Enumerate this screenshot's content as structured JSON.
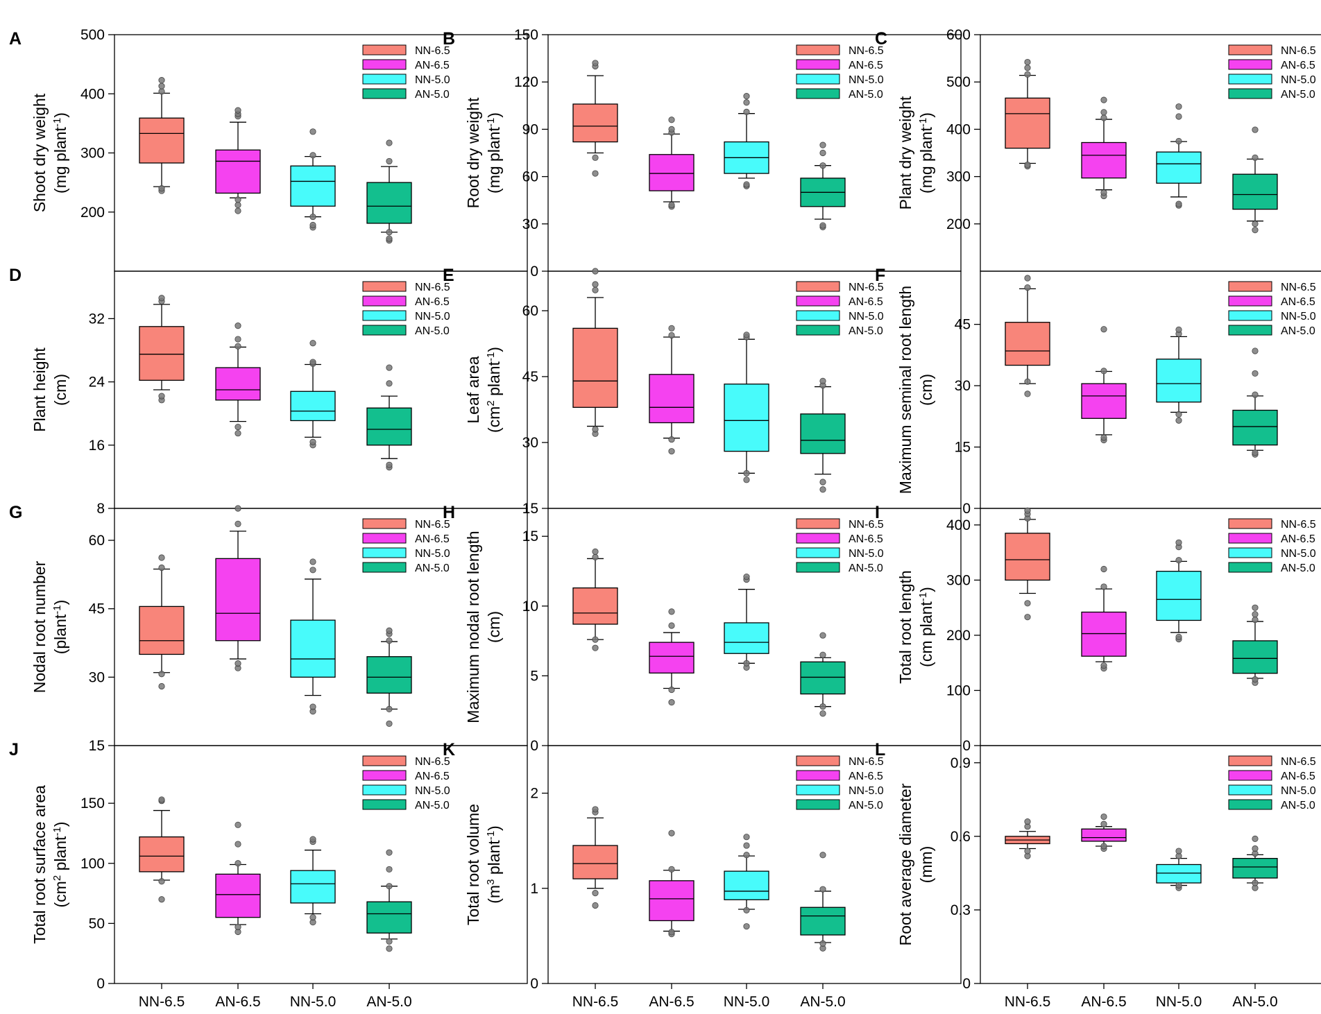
{
  "colors": {
    "NN-6.5": "#f8857a",
    "AN-6.5": "#f542f0",
    "NN-5.0": "#48fbfb",
    "AN-5.0": "#13bf8e"
  },
  "chart_data": [
    {
      "type": "box",
      "letter": "A",
      "ylabel": [
        "Shoot dry weight",
        "(mg plant",
        "-1",
        ")"
      ],
      "ylim": [
        100,
        500
      ],
      "ticks": [
        200,
        300,
        400,
        500
      ],
      "categories": [
        "NN-6.5",
        "AN-6.5",
        "NN-5.0",
        "AN-5.0"
      ],
      "series": [
        {
          "name": "NN-6.5",
          "min": 243,
          "q1": 283,
          "median": 333,
          "q3": 359,
          "max": 401,
          "outliers": [
            236,
            240,
            404,
            413,
            423
          ]
        },
        {
          "name": "AN-6.5",
          "min": 224,
          "q1": 232,
          "median": 286,
          "q3": 305,
          "max": 352,
          "outliers": [
            202,
            212,
            221,
            362,
            366,
            372
          ]
        },
        {
          "name": "NN-5.0",
          "min": 192,
          "q1": 210,
          "median": 252,
          "q3": 278,
          "max": 294,
          "outliers": [
            174,
            178,
            192,
            296,
            336
          ]
        },
        {
          "name": "AN-5.0",
          "min": 166,
          "q1": 181,
          "median": 210,
          "q3": 250,
          "max": 277,
          "outliers": [
            152,
            155,
            166,
            286,
            317
          ]
        }
      ]
    },
    {
      "type": "box",
      "letter": "B",
      "ylabel": [
        "Root dry weight",
        "(mg plant",
        "-1",
        ")"
      ],
      "ylim": [
        0,
        150
      ],
      "ticks": [
        0,
        30,
        60,
        90,
        120,
        150
      ],
      "categories": [
        "NN-6.5",
        "AN-6.5",
        "NN-5.0",
        "AN-5.0"
      ],
      "series": [
        {
          "name": "NN-6.5",
          "min": 75,
          "q1": 82,
          "median": 92,
          "q3": 106,
          "max": 124,
          "outliers": [
            62,
            72,
            130,
            132
          ]
        },
        {
          "name": "AN-6.5",
          "min": 44,
          "q1": 51,
          "median": 62,
          "q3": 74,
          "max": 87,
          "outliers": [
            41,
            42,
            88,
            90,
            96
          ]
        },
        {
          "name": "NN-5.0",
          "min": 59,
          "q1": 62,
          "median": 72,
          "q3": 82,
          "max": 100,
          "outliers": [
            54,
            55,
            101,
            107,
            111
          ]
        },
        {
          "name": "AN-5.0",
          "min": 33,
          "q1": 41,
          "median": 50,
          "q3": 59,
          "max": 67,
          "outliers": [
            28,
            29,
            67,
            75,
            80
          ]
        }
      ]
    },
    {
      "type": "box",
      "letter": "C",
      "ylabel": [
        "Plant dry weight",
        "(mg plant",
        "-1",
        ")"
      ],
      "ylim": [
        100,
        600
      ],
      "ticks": [
        200,
        300,
        400,
        500,
        600
      ],
      "categories": [
        "NN-6.5",
        "AN-6.5",
        "NN-5.0",
        "AN-5.0"
      ],
      "series": [
        {
          "name": "NN-6.5",
          "min": 328,
          "q1": 360,
          "median": 433,
          "q3": 466,
          "max": 514,
          "outliers": [
            322,
            325,
            516,
            530,
            542
          ]
        },
        {
          "name": "AN-6.5",
          "min": 272,
          "q1": 297,
          "median": 345,
          "q3": 372,
          "max": 421,
          "outliers": [
            259,
            266,
            424,
            436,
            462
          ]
        },
        {
          "name": "NN-5.0",
          "min": 257,
          "q1": 286,
          "median": 327,
          "q3": 352,
          "max": 374,
          "outliers": [
            239,
            242,
            375,
            427,
            448
          ]
        },
        {
          "name": "AN-5.0",
          "min": 206,
          "q1": 231,
          "median": 262,
          "q3": 305,
          "max": 337,
          "outliers": [
            187,
            200,
            340,
            399
          ]
        }
      ]
    },
    {
      "type": "box",
      "letter": "D",
      "ylabel": [
        "Plant height",
        "(cm)"
      ],
      "ylim": [
        8,
        38
      ],
      "ticks": [
        8,
        16,
        24,
        32
      ],
      "categories": [
        "NN-6.5",
        "AN-6.5",
        "NN-5.0",
        "AN-5.0"
      ],
      "series": [
        {
          "name": "NN-6.5",
          "min": 23,
          "q1": 24.2,
          "median": 27.5,
          "q3": 31,
          "max": 33.8,
          "outliers": [
            21.7,
            22.2,
            34.2,
            34.6
          ]
        },
        {
          "name": "AN-6.5",
          "min": 19,
          "q1": 21.7,
          "median": 23,
          "q3": 25.8,
          "max": 28.4,
          "outliers": [
            17.5,
            18.3,
            28.5,
            29.4,
            31.1
          ]
        },
        {
          "name": "NN-5.0",
          "min": 17,
          "q1": 19.1,
          "median": 20.3,
          "q3": 22.8,
          "max": 26.2,
          "outliers": [
            16,
            16.4,
            26.3,
            26.5,
            28.9
          ]
        },
        {
          "name": "AN-5.0",
          "min": 14.3,
          "q1": 16,
          "median": 18,
          "q3": 20.7,
          "max": 22.2,
          "outliers": [
            13.2,
            13.5,
            23.8,
            25.8
          ]
        }
      ]
    },
    {
      "type": "box",
      "letter": "E",
      "ylabel": [
        "Leaf area",
        "(cm",
        "2",
        " plant",
        "-1",
        ")"
      ],
      "ylim": [
        15,
        69
      ],
      "ticks": [
        15,
        30,
        45,
        60
      ],
      "categories": [
        "NN-6.5",
        "AN-6.5",
        "NN-5.0",
        "AN-5.0"
      ],
      "series": [
        {
          "name": "NN-6.5",
          "min": 33.7,
          "q1": 38,
          "median": 44,
          "q3": 56,
          "max": 63,
          "outliers": [
            32,
            33,
            64.7,
            66,
            69
          ]
        },
        {
          "name": "AN-6.5",
          "min": 31,
          "q1": 34.5,
          "median": 38,
          "q3": 45.5,
          "max": 54,
          "outliers": [
            28,
            30.7,
            54.4,
            56
          ]
        },
        {
          "name": "NN-5.0",
          "min": 23,
          "q1": 28,
          "median": 35,
          "q3": 43.3,
          "max": 53.5,
          "outliers": [
            21.5,
            23,
            54,
            54.5
          ]
        },
        {
          "name": "AN-5.0",
          "min": 22.8,
          "q1": 27.5,
          "median": 30.5,
          "q3": 36.5,
          "max": 42.7,
          "outliers": [
            19.3,
            21,
            43,
            44
          ]
        }
      ]
    },
    {
      "type": "box",
      "letter": "F",
      "ylabel": [
        "Maximum seminal root length",
        "(cm)"
      ],
      "ylim": [
        0,
        58
      ],
      "ticks": [
        0,
        15,
        30,
        45
      ],
      "categories": [
        "NN-6.5",
        "AN-6.5",
        "NN-5.0",
        "AN-5.0"
      ],
      "series": [
        {
          "name": "NN-6.5",
          "min": 30.5,
          "q1": 35,
          "median": 38.5,
          "q3": 45.5,
          "max": 53.7,
          "outliers": [
            28,
            31,
            54,
            56.3
          ]
        },
        {
          "name": "AN-6.5",
          "min": 18,
          "q1": 22,
          "median": 27.5,
          "q3": 30.5,
          "max": 33.5,
          "outliers": [
            16.7,
            17.3,
            33.6,
            43.8
          ]
        },
        {
          "name": "NN-5.0",
          "min": 23.5,
          "q1": 26,
          "median": 30.5,
          "q3": 36.5,
          "max": 42,
          "outliers": [
            21.5,
            23,
            42.7,
            43.7
          ]
        },
        {
          "name": "AN-5.0",
          "min": 14.2,
          "q1": 15.5,
          "median": 20,
          "q3": 24,
          "max": 27.5,
          "outliers": [
            13.2,
            13.6,
            27.8,
            33,
            38.5
          ]
        }
      ]
    },
    {
      "type": "box",
      "letter": "G",
      "ylabel": [
        "Nodal root number",
        "(plant",
        "-1",
        ")"
      ],
      "ylim": [
        15,
        67
      ],
      "ticks": [
        15,
        30,
        45,
        60
      ],
      "categories": [
        "NN-6.5",
        "AN-6.5",
        "NN-5.0",
        "AN-5.0"
      ],
      "series": [
        {
          "name": "NN-6.5",
          "min": 31,
          "q1": 35,
          "median": 38,
          "q3": 45.5,
          "max": 53.7,
          "outliers": [
            28,
            30.7,
            54,
            56.2
          ]
        },
        {
          "name": "AN-6.5",
          "min": 34,
          "q1": 38,
          "median": 44,
          "q3": 56,
          "max": 62,
          "outliers": [
            32,
            33,
            63.6,
            67
          ]
        },
        {
          "name": "NN-5.0",
          "min": 26,
          "q1": 30,
          "median": 34,
          "q3": 42.5,
          "max": 51.5,
          "outliers": [
            22.5,
            23.5,
            53.5,
            55.3
          ]
        },
        {
          "name": "AN-5.0",
          "min": 23,
          "q1": 26.5,
          "median": 30,
          "q3": 34.5,
          "max": 37.8,
          "outliers": [
            19.8,
            23,
            38,
            39.5,
            40.2
          ]
        }
      ]
    },
    {
      "type": "box",
      "letter": "H",
      "ylabel": [
        "Maximum nodal root length",
        "(cm)"
      ],
      "ylim": [
        0,
        17
      ],
      "ticks": [
        0,
        5,
        10,
        15
      ],
      "categories": [
        "NN-6.5",
        "AN-6.5",
        "NN-5.0",
        "AN-5.0"
      ],
      "series": [
        {
          "name": "NN-6.5",
          "min": 7.6,
          "q1": 8.7,
          "median": 9.5,
          "q3": 11.3,
          "max": 13.4,
          "outliers": [
            7,
            7.6,
            13.5,
            13.9
          ]
        },
        {
          "name": "AN-6.5",
          "min": 4.1,
          "q1": 5.2,
          "median": 6.4,
          "q3": 7.4,
          "max": 8.1,
          "outliers": [
            3.1,
            4,
            8.6,
            9.6
          ]
        },
        {
          "name": "NN-5.0",
          "min": 5.9,
          "q1": 6.6,
          "median": 7.4,
          "q3": 8.8,
          "max": 11.2,
          "outliers": [
            5.6,
            5.9,
            11.9,
            12.1
          ]
        },
        {
          "name": "AN-5.0",
          "min": 2.8,
          "q1": 3.7,
          "median": 4.9,
          "q3": 6,
          "max": 6.3,
          "outliers": [
            2.3,
            2.8,
            6.5,
            7.9
          ]
        }
      ]
    },
    {
      "type": "box",
      "letter": "I",
      "ylabel": [
        "Total root length",
        "(cm plant",
        "-1",
        ")"
      ],
      "ylim": [
        0,
        430
      ],
      "ticks": [
        0,
        100,
        200,
        300,
        400
      ],
      "categories": [
        "NN-6.5",
        "AN-6.5",
        "NN-5.0",
        "AN-5.0"
      ],
      "series": [
        {
          "name": "NN-6.5",
          "min": 276,
          "q1": 300,
          "median": 337,
          "q3": 385,
          "max": 410,
          "outliers": [
            233,
            258,
            412,
            420,
            426
          ]
        },
        {
          "name": "AN-6.5",
          "min": 152,
          "q1": 162,
          "median": 203,
          "q3": 242,
          "max": 284,
          "outliers": [
            140,
            145,
            288,
            320
          ]
        },
        {
          "name": "NN-5.0",
          "min": 205,
          "q1": 227,
          "median": 265,
          "q3": 316,
          "max": 334,
          "outliers": [
            193,
            197,
            336,
            360,
            368
          ]
        },
        {
          "name": "AN-5.0",
          "min": 122,
          "q1": 131,
          "median": 158,
          "q3": 190,
          "max": 225,
          "outliers": [
            114,
            120,
            228,
            238,
            250
          ]
        }
      ]
    },
    {
      "type": "box",
      "letter": "J",
      "ylabel": [
        "Total root surface area",
        "(cm",
        "2",
        " plant",
        "-1",
        ")"
      ],
      "ylim": [
        0,
        198
      ],
      "ticks": [
        0,
        50,
        100,
        150
      ],
      "categories": [
        "NN-6.5",
        "AN-6.5",
        "NN-5.0",
        "AN-5.0"
      ],
      "series": [
        {
          "name": "NN-6.5",
          "min": 86,
          "q1": 93,
          "median": 106,
          "q3": 122,
          "max": 144,
          "outliers": [
            70,
            85,
            152,
            153
          ]
        },
        {
          "name": "AN-6.5",
          "min": 49,
          "q1": 55,
          "median": 74,
          "q3": 91,
          "max": 99,
          "outliers": [
            43,
            47,
            100,
            116,
            132
          ]
        },
        {
          "name": "NN-5.0",
          "min": 58,
          "q1": 67,
          "median": 83,
          "q3": 94,
          "max": 111,
          "outliers": [
            51,
            55,
            118,
            120
          ]
        },
        {
          "name": "AN-5.0",
          "min": 37,
          "q1": 42,
          "median": 58,
          "q3": 68,
          "max": 81,
          "outliers": [
            29,
            35,
            81,
            95,
            109
          ]
        }
      ]
    },
    {
      "type": "box",
      "letter": "K",
      "ylabel": [
        "Total root volume",
        "(m",
        "3",
        " plant",
        "-1",
        ")"
      ],
      "ylim": [
        0,
        2.5
      ],
      "ticks": [
        0,
        1,
        2
      ],
      "categories": [
        "NN-6.5",
        "AN-6.5",
        "NN-5.0",
        "AN-5.0"
      ],
      "series": [
        {
          "name": "NN-6.5",
          "min": 1,
          "q1": 1.1,
          "median": 1.26,
          "q3": 1.45,
          "max": 1.74,
          "outliers": [
            0.82,
            0.95,
            1.8,
            1.83
          ]
        },
        {
          "name": "AN-6.5",
          "min": 0.55,
          "q1": 0.66,
          "median": 0.89,
          "q3": 1.08,
          "max": 1.19,
          "outliers": [
            0.52,
            0.54,
            1.2,
            1.58
          ]
        },
        {
          "name": "NN-5.0",
          "min": 0.78,
          "q1": 0.88,
          "median": 0.97,
          "q3": 1.18,
          "max": 1.34,
          "outliers": [
            0.6,
            0.77,
            1.35,
            1.45,
            1.54
          ]
        },
        {
          "name": "AN-5.0",
          "min": 0.43,
          "q1": 0.51,
          "median": 0.71,
          "q3": 0.8,
          "max": 0.97,
          "outliers": [
            0.37,
            0.42,
            0.99,
            1.35
          ]
        }
      ]
    },
    {
      "type": "box",
      "letter": "L",
      "ylabel": [
        "Root average diameter",
        "(mm)"
      ],
      "ylim": [
        0,
        0.97
      ],
      "ticks": [
        0,
        0.3,
        0.6,
        0.9
      ],
      "categories": [
        "NN-6.5",
        "AN-6.5",
        "NN-5.0",
        "AN-5.0"
      ],
      "series": [
        {
          "name": "NN-6.5",
          "min": 0.55,
          "q1": 0.57,
          "median": 0.585,
          "q3": 0.6,
          "max": 0.62,
          "outliers": [
            0.52,
            0.54,
            0.64,
            0.66
          ]
        },
        {
          "name": "AN-6.5",
          "min": 0.56,
          "q1": 0.58,
          "median": 0.595,
          "q3": 0.63,
          "max": 0.64,
          "outliers": [
            0.55,
            0.56,
            0.65,
            0.68
          ]
        },
        {
          "name": "NN-5.0",
          "min": 0.4,
          "q1": 0.41,
          "median": 0.45,
          "q3": 0.485,
          "max": 0.51,
          "outliers": [
            0.39,
            0.4,
            0.52,
            0.54
          ]
        },
        {
          "name": "AN-5.0",
          "min": 0.41,
          "q1": 0.43,
          "median": 0.475,
          "q3": 0.51,
          "max": 0.525,
          "outliers": [
            0.39,
            0.41,
            0.53,
            0.55,
            0.59
          ]
        }
      ]
    }
  ],
  "legend": [
    "NN-6.5",
    "AN-6.5",
    "NN-5.0",
    "AN-5.0"
  ]
}
